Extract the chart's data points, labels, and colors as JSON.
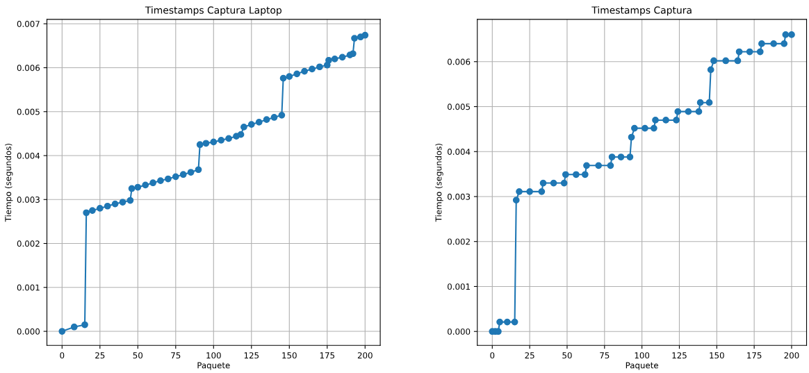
{
  "chart_data": [
    {
      "type": "line",
      "title": "Timestamps Captura Laptop",
      "xlabel": "Paquete",
      "ylabel": "Tiempo (segundos)",
      "marker": "circle",
      "line_style": "solid",
      "grid": true,
      "legend": false,
      "xlim": [
        -10,
        210
      ],
      "xticks": [
        0,
        25,
        50,
        75,
        100,
        125,
        150,
        175,
        200
      ],
      "ylim": [
        -0.00032,
        0.0071
      ],
      "yticks": [
        {
          "value": 0,
          "label": "0.000"
        },
        {
          "value": 0.001,
          "label": "0.001"
        },
        {
          "value": 0.002,
          "label": "0.002"
        },
        {
          "value": 0.003,
          "label": "0.003"
        },
        {
          "value": 0.004,
          "label": "0.004"
        },
        {
          "value": 0.005,
          "label": "0.005"
        },
        {
          "value": 0.006,
          "label": "0.006"
        },
        {
          "value": 0.007,
          "label": "0.007"
        }
      ],
      "series": [
        {
          "color": "#1f77b4",
          "x": [
            0,
            8,
            15,
            16,
            20,
            25,
            30,
            35,
            40,
            45,
            46,
            50,
            55,
            60,
            65,
            70,
            75,
            80,
            85,
            90,
            91,
            95,
            100,
            105,
            110,
            115,
            118,
            120,
            125,
            130,
            135,
            140,
            145,
            146,
            150,
            155,
            160,
            165,
            170,
            175,
            176,
            180,
            185,
            190,
            192,
            193,
            197,
            200
          ],
          "values": [
            0.0,
            0.0001,
            0.00015,
            0.0027,
            0.00275,
            0.0028,
            0.00285,
            0.0029,
            0.00294,
            0.00298,
            0.00325,
            0.00328,
            0.00333,
            0.00338,
            0.00343,
            0.00347,
            0.00352,
            0.00357,
            0.00362,
            0.00368,
            0.00425,
            0.00428,
            0.00431,
            0.00435,
            0.00439,
            0.00444,
            0.00448,
            0.00465,
            0.00471,
            0.00476,
            0.00482,
            0.00487,
            0.00492,
            0.00576,
            0.0058,
            0.00586,
            0.00592,
            0.00597,
            0.00602,
            0.00606,
            0.00617,
            0.0062,
            0.00624,
            0.00629,
            0.00632,
            0.00667,
            0.0067,
            0.00674
          ]
        }
      ]
    },
    {
      "type": "line",
      "title": "Timestamps Captura",
      "xlabel": "Paquete",
      "ylabel": "Tiempo (segundos)",
      "marker": "circle",
      "line_style": "solid",
      "grid": true,
      "legend": false,
      "xlim": [
        -10,
        210
      ],
      "xticks": [
        0,
        25,
        50,
        75,
        100,
        125,
        150,
        175,
        200
      ],
      "ylim": [
        -0.00031,
        0.00694
      ],
      "yticks": [
        {
          "value": 0,
          "label": "0.000"
        },
        {
          "value": 0.001,
          "label": "0.001"
        },
        {
          "value": 0.002,
          "label": "0.002"
        },
        {
          "value": 0.003,
          "label": "0.003"
        },
        {
          "value": 0.004,
          "label": "0.004"
        },
        {
          "value": 0.005,
          "label": "0.005"
        },
        {
          "value": 0.006,
          "label": "0.006"
        }
      ],
      "series": [
        {
          "color": "#1f77b4",
          "x": [
            0,
            2,
            4,
            5,
            10,
            15,
            16,
            18,
            25,
            33,
            34,
            41,
            48,
            49,
            56,
            62,
            63,
            71,
            79,
            80,
            86,
            92,
            93,
            95,
            102,
            108,
            109,
            116,
            123,
            124,
            131,
            138,
            139,
            145,
            146,
            148,
            156,
            164,
            165,
            172,
            179,
            180,
            188,
            195,
            196,
            200
          ],
          "values": [
            0.0,
            0.0,
            0.0,
            0.00021,
            0.00021,
            0.00021,
            0.00292,
            0.00311,
            0.00311,
            0.00311,
            0.0033,
            0.0033,
            0.0033,
            0.00349,
            0.00349,
            0.00349,
            0.00369,
            0.00369,
            0.00369,
            0.00388,
            0.00388,
            0.00388,
            0.00432,
            0.00452,
            0.00452,
            0.00452,
            0.0047,
            0.0047,
            0.0047,
            0.00489,
            0.00489,
            0.00489,
            0.00509,
            0.00509,
            0.00582,
            0.00602,
            0.00602,
            0.00602,
            0.00622,
            0.00622,
            0.00622,
            0.0064,
            0.0064,
            0.0064,
            0.0066,
            0.0066
          ]
        }
      ]
    }
  ]
}
